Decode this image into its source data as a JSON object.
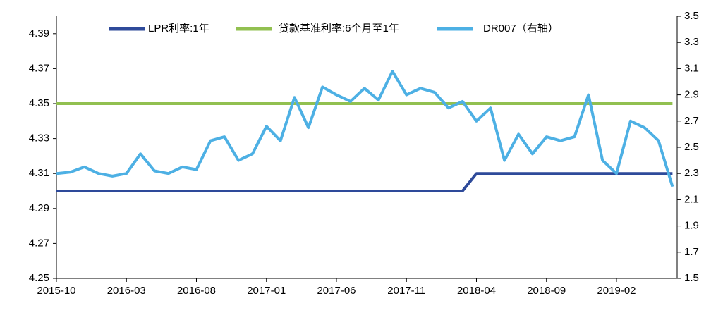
{
  "chart_data": {
    "type": "line",
    "categories": [
      "2015-10",
      null,
      null,
      null,
      null,
      "2016-03",
      null,
      null,
      null,
      null,
      "2016-08",
      null,
      null,
      null,
      null,
      "2017-01",
      null,
      null,
      null,
      null,
      "2017-06",
      null,
      null,
      null,
      null,
      "2017-11",
      null,
      null,
      null,
      null,
      "2018-04",
      null,
      null,
      null,
      null,
      "2018-09",
      null,
      null,
      null,
      null,
      "2019-02",
      null,
      null,
      null,
      null
    ],
    "series": [
      {
        "name": "LPR利率:1年",
        "color": "#2e4a9a",
        "values": [
          4.3,
          4.3,
          4.3,
          4.3,
          4.3,
          4.3,
          4.3,
          4.3,
          4.3,
          4.3,
          4.3,
          4.3,
          4.3,
          4.3,
          4.3,
          4.3,
          4.3,
          4.3,
          4.3,
          4.3,
          4.3,
          4.3,
          4.3,
          4.3,
          4.3,
          4.3,
          4.3,
          4.3,
          4.3,
          4.3,
          4.31,
          4.31,
          4.31,
          4.31,
          4.31,
          4.31,
          4.31,
          4.31,
          4.31,
          4.31,
          4.31,
          4.31,
          4.31,
          4.31,
          4.31
        ]
      },
      {
        "name": "贷款基准利率:6个月至1年",
        "color": "#92c050",
        "values": [
          4.35,
          4.35,
          4.35,
          4.35,
          4.35,
          4.35,
          4.35,
          4.35,
          4.35,
          4.35,
          4.35,
          4.35,
          4.35,
          4.35,
          4.35,
          4.35,
          4.35,
          4.35,
          4.35,
          4.35,
          4.35,
          4.35,
          4.35,
          4.35,
          4.35,
          4.35,
          4.35,
          4.35,
          4.35,
          4.35,
          4.35,
          4.35,
          4.35,
          4.35,
          4.35,
          4.35,
          4.35,
          4.35,
          4.35,
          4.35,
          4.35,
          4.35,
          4.35,
          4.35,
          4.35
        ]
      },
      {
        "name": "DR007（右轴）",
        "color": "#4db0e4",
        "axis": "y2",
        "values": [
          2.3,
          2.31,
          2.35,
          2.3,
          2.28,
          2.3,
          2.45,
          2.32,
          2.3,
          2.35,
          2.33,
          2.55,
          2.58,
          2.4,
          2.45,
          2.66,
          2.55,
          2.88,
          2.65,
          2.96,
          2.9,
          2.85,
          2.95,
          2.86,
          3.08,
          2.9,
          2.95,
          2.92,
          2.8,
          2.85,
          2.7,
          2.8,
          2.4,
          2.6,
          2.45,
          2.58,
          2.55,
          2.58,
          2.9,
          2.4,
          2.3,
          2.7,
          2.65,
          2.55,
          2.2
        ]
      }
    ],
    "ylim": [
      4.25,
      4.4
    ],
    "yticks": [
      4.25,
      4.27,
      4.29,
      4.31,
      4.33,
      4.35,
      4.37,
      4.39
    ],
    "y2lim": [
      1.5,
      3.5
    ],
    "y2ticks": [
      1.5,
      1.7,
      1.9,
      2.1,
      2.3,
      2.5,
      2.7,
      2.9,
      3.1,
      3.3,
      3.5
    ]
  }
}
